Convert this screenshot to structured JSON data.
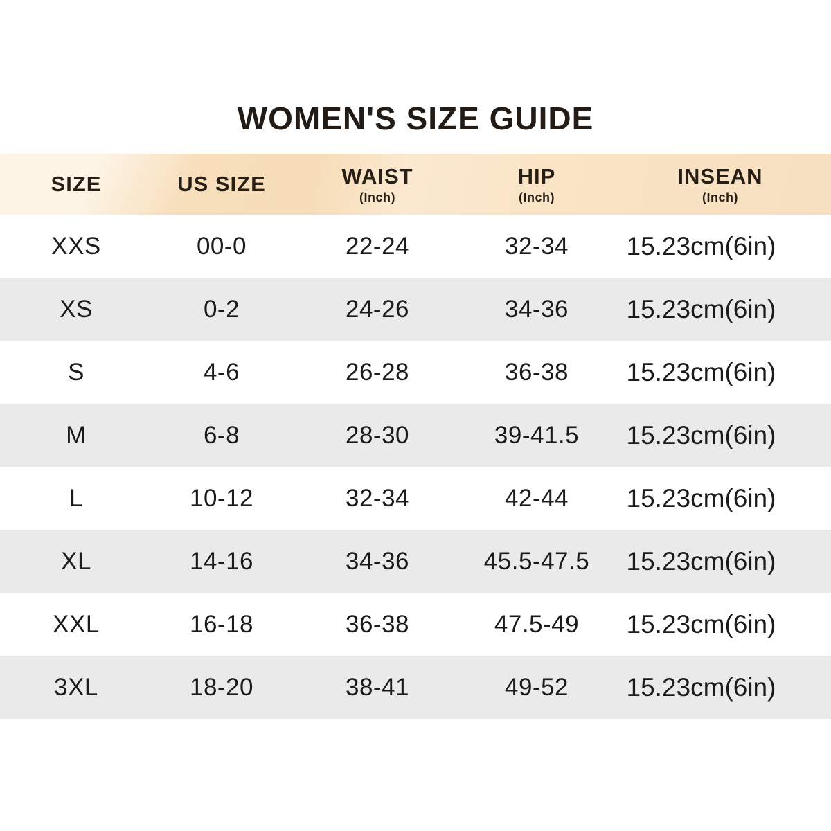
{
  "page": {
    "title": "WOMEN'S SIZE GUIDE"
  },
  "table": {
    "columns": [
      {
        "label": "SIZE",
        "unit": ""
      },
      {
        "label": "US SIZE",
        "unit": ""
      },
      {
        "label": "WAIST",
        "unit": "(Inch)"
      },
      {
        "label": "HIP",
        "unit": "(Inch)"
      },
      {
        "label": "INSEAN",
        "unit": "(Inch)"
      }
    ],
    "rows": [
      [
        "XXS",
        "00-0",
        "22-24",
        "32-34",
        "15.23cm(6in)"
      ],
      [
        "XS",
        "0-2",
        "24-26",
        "34-36",
        "15.23cm(6in)"
      ],
      [
        "S",
        "4-6",
        "26-28",
        "36-38",
        "15.23cm(6in)"
      ],
      [
        "M",
        "6-8",
        "28-30",
        "39-41.5",
        "15.23cm(6in)"
      ],
      [
        "L",
        "10-12",
        "32-34",
        "42-44",
        "15.23cm(6in)"
      ],
      [
        "XL",
        "14-16",
        "34-36",
        "45.5-47.5",
        "15.23cm(6in)"
      ],
      [
        "XXL",
        "16-18",
        "36-38",
        "47.5-49",
        "15.23cm(6in)"
      ],
      [
        "3XL",
        "18-20",
        "38-41",
        "49-52",
        "15.23cm(6in)"
      ]
    ]
  },
  "colors": {
    "header_bg": "#f7ddb9",
    "row_bg": "#ffffff",
    "row_alt_bg": "#eaeaea",
    "text": "#1b1b1b",
    "title_text": "#231b15"
  }
}
